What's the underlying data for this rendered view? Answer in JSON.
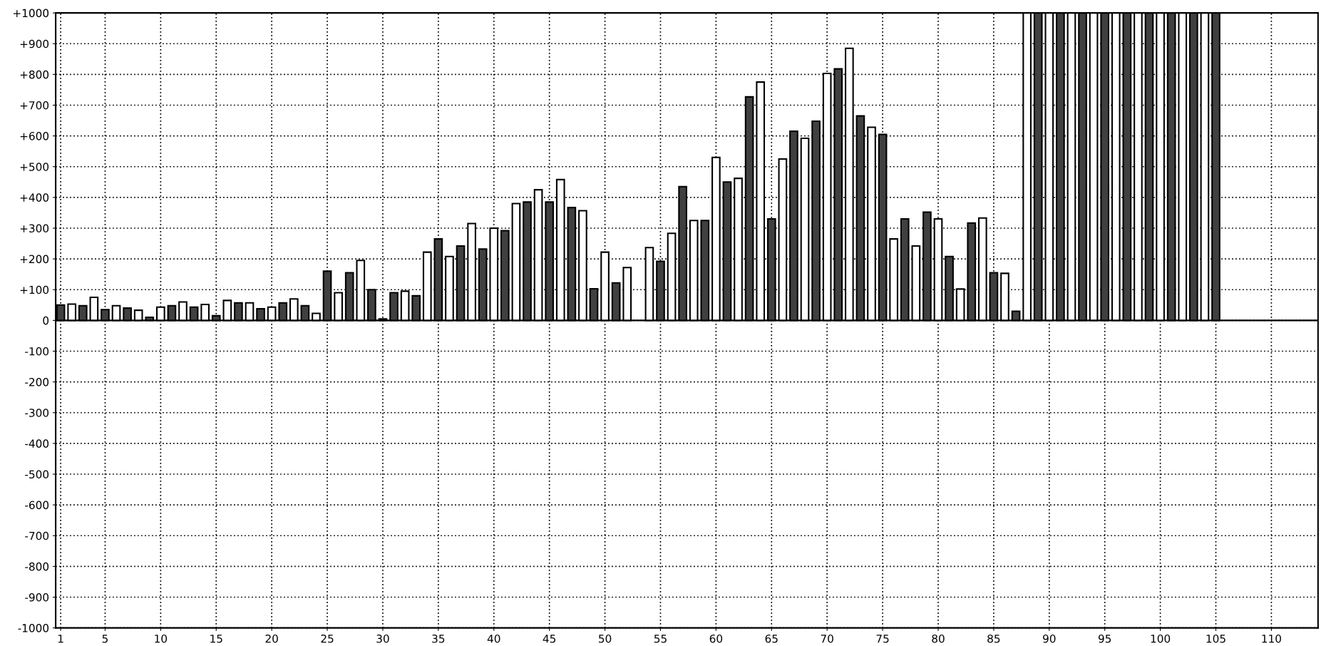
{
  "chart_data": {
    "type": "bar",
    "x": [
      1,
      2,
      3,
      4,
      5,
      6,
      7,
      8,
      9,
      10,
      11,
      12,
      13,
      14,
      15,
      16,
      17,
      18,
      19,
      20,
      21,
      22,
      23,
      24,
      25,
      26,
      27,
      28,
      29,
      30,
      31,
      32,
      33,
      34,
      35,
      36,
      37,
      38,
      39,
      40,
      41,
      42,
      43,
      44,
      45,
      46,
      47,
      48,
      49,
      50,
      51,
      52,
      53,
      54,
      55,
      56,
      57,
      58,
      59,
      60,
      61,
      62,
      63,
      64,
      65,
      66,
      67,
      68,
      69,
      70,
      71,
      72,
      73,
      74,
      75,
      76,
      77,
      78,
      79,
      80,
      81,
      82,
      83,
      84,
      85,
      86,
      87,
      88,
      89,
      90,
      91,
      92,
      93,
      94,
      95,
      96,
      97,
      98,
      99,
      100,
      101,
      102,
      103,
      104,
      105
    ],
    "values": [
      50,
      53,
      48,
      75,
      35,
      48,
      40,
      33,
      10,
      43,
      48,
      60,
      43,
      52,
      15,
      65,
      57,
      57,
      38,
      43,
      57,
      70,
      48,
      23,
      160,
      90,
      155,
      195,
      100,
      5,
      90,
      95,
      80,
      222,
      265,
      208,
      242,
      315,
      232,
      300,
      292,
      380,
      385,
      425,
      385,
      458,
      367,
      357,
      103,
      222,
      122,
      172,
      null,
      237,
      192,
      283,
      435,
      325,
      325,
      530,
      450,
      462,
      727,
      775,
      330,
      525,
      615,
      592,
      648,
      803,
      818,
      885,
      665,
      628,
      605,
      265,
      330,
      242,
      352,
      330,
      208,
      102,
      317,
      333,
      155,
      153,
      30,
      1000,
      1000,
      1000,
      1000,
      1000,
      1000,
      1000,
      1000,
      1000,
      1000,
      1000,
      1000,
      1000,
      1000,
      1000,
      1000,
      1000,
      1000
    ],
    "colors": [
      "#404040",
      "#ffffff",
      "#404040",
      "#ffffff",
      "#404040",
      "#ffffff",
      "#404040",
      "#ffffff",
      "#404040",
      "#ffffff",
      "#404040",
      "#ffffff",
      "#404040",
      "#ffffff",
      "#404040",
      "#ffffff",
      "#404040",
      "#ffffff",
      "#404040",
      "#ffffff",
      "#404040",
      "#ffffff",
      "#404040",
      "#ffffff",
      "#404040",
      "#ffffff",
      "#404040",
      "#ffffff",
      "#404040",
      "#404040",
      "#404040",
      "#ffffff",
      "#404040",
      "#ffffff",
      "#404040",
      "#ffffff",
      "#404040",
      "#ffffff",
      "#404040",
      "#ffffff",
      "#404040",
      "#ffffff",
      "#404040",
      "#ffffff",
      "#404040",
      "#ffffff",
      "#404040",
      "#ffffff",
      "#404040",
      "#ffffff",
      "#404040",
      "#ffffff",
      "#ffffff",
      "#ffffff",
      "#404040",
      "#ffffff",
      "#404040",
      "#ffffff",
      "#404040",
      "#ffffff",
      "#404040",
      "#ffffff",
      "#404040",
      "#ffffff",
      "#404040",
      "#ffffff",
      "#404040",
      "#ffffff",
      "#404040",
      "#ffffff",
      "#404040",
      "#ffffff",
      "#404040",
      "#ffffff",
      "#404040",
      "#ffffff",
      "#404040",
      "#ffffff",
      "#404040",
      "#ffffff",
      "#404040",
      "#ffffff",
      "#404040",
      "#ffffff",
      "#404040",
      "#ffffff",
      "#404040",
      "#ffffff",
      "#404040",
      "#ffffff",
      "#404040",
      "#ffffff",
      "#404040",
      "#ffffff",
      "#404040",
      "#ffffff",
      "#404040",
      "#ffffff",
      "#404040",
      "#ffffff",
      "#404040",
      "#ffffff",
      "#404040",
      "#ffffff",
      "#404040"
    ],
    "xlim": [
      0.55,
      114.2
    ],
    "xticks": [
      1,
      5,
      10,
      15,
      20,
      25,
      30,
      35,
      40,
      45,
      50,
      55,
      60,
      65,
      70,
      75,
      80,
      85,
      90,
      95,
      100,
      105,
      110
    ],
    "ylim": [
      -1000,
      1000
    ],
    "yticks": [
      {
        "value": -1000,
        "label": "-1000"
      },
      {
        "value": -900,
        "label": "-900"
      },
      {
        "value": -800,
        "label": "-800"
      },
      {
        "value": -700,
        "label": "-700"
      },
      {
        "value": -600,
        "label": "-600"
      },
      {
        "value": -500,
        "label": "-500"
      },
      {
        "value": -400,
        "label": "-400"
      },
      {
        "value": -300,
        "label": "-300"
      },
      {
        "value": -200,
        "label": "-200"
      },
      {
        "value": -100,
        "label": "-100"
      },
      0,
      {
        "value": 100,
        "label": "+100"
      },
      {
        "value": 200,
        "label": "+200"
      },
      {
        "value": 300,
        "label": "+300"
      },
      {
        "value": 400,
        "label": "+400"
      },
      {
        "value": 500,
        "label": "+500"
      },
      {
        "value": 600,
        "label": "+600"
      },
      {
        "value": 700,
        "label": "+700"
      },
      {
        "value": 800,
        "label": "+800"
      },
      {
        "value": 900,
        "label": "+900"
      },
      {
        "value": 1000,
        "label": "+1000"
      }
    ],
    "grid": true
  }
}
